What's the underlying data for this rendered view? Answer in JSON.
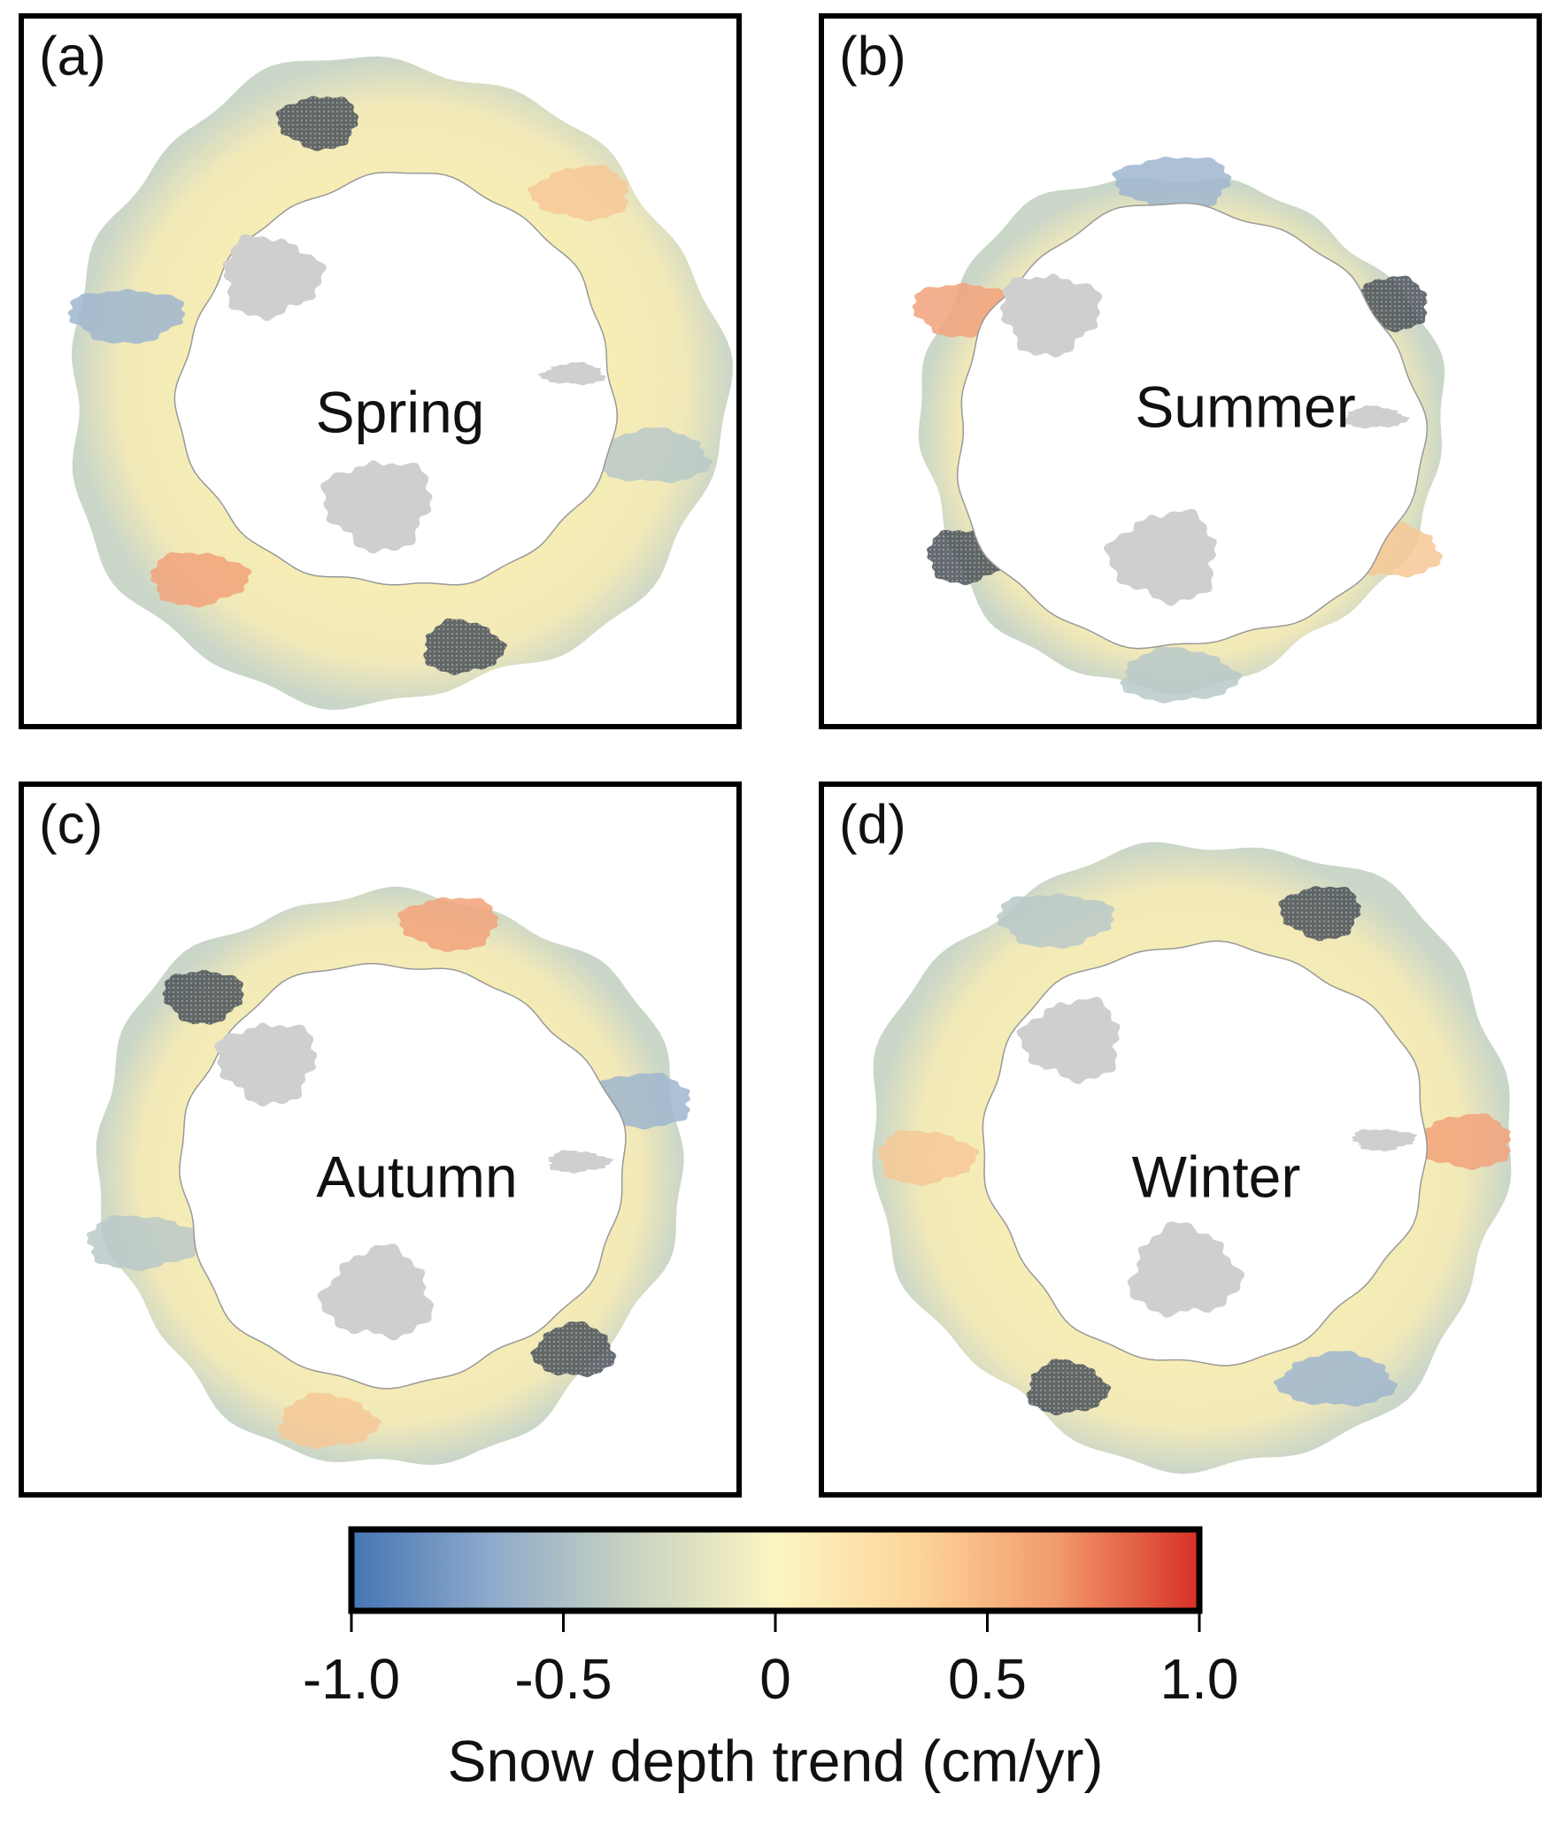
{
  "panels": [
    {
      "label": "(a)",
      "season": "Spring"
    },
    {
      "label": "(b)",
      "season": "Summer"
    },
    {
      "label": "(c)",
      "season": "Autumn"
    },
    {
      "label": "(d)",
      "season": "Winter"
    }
  ],
  "colorbar": {
    "label": "Snow depth trend (cm/yr)",
    "lim": [
      -1,
      1
    ],
    "ticks": [
      {
        "value": -1,
        "label": "-1.0"
      },
      -0.5,
      0,
      0.5,
      {
        "value": 1,
        "label": "1.0"
      }
    ],
    "colors": [
      "#4575b4",
      "#8fabcc",
      "#c9d3c0",
      "#fbf5c3",
      "#fdd59a",
      "#f29a6b",
      "#d73027"
    ]
  }
}
